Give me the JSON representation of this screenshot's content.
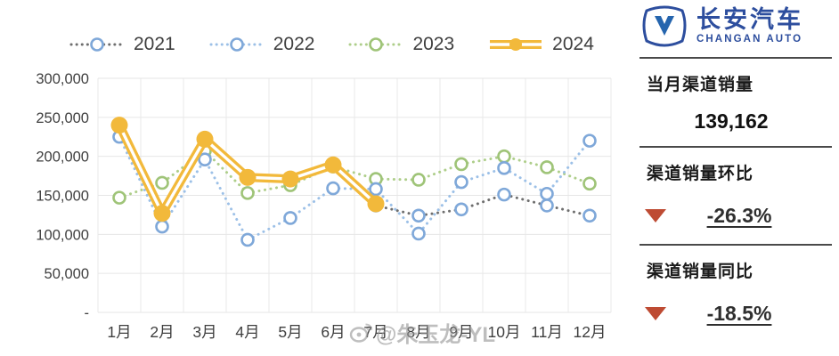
{
  "chart_data": {
    "type": "line",
    "title": "",
    "categories": [
      "1月",
      "2月",
      "3月",
      "4月",
      "5月",
      "6月",
      "7月",
      "8月",
      "9月",
      "10月",
      "11月",
      "12月"
    ],
    "series": [
      {
        "name": "2021",
        "line_color": "#6e6e6e",
        "marker": "ring",
        "marker_color": "#7FA8D9",
        "values": [
          241000,
          129000,
          220000,
          174000,
          172000,
          190000,
          137000,
          124000,
          132000,
          151000,
          137000,
          124000
        ]
      },
      {
        "name": "2022",
        "line_color": "#9CC0E7",
        "marker": "ring",
        "marker_color": "#7FA8D9",
        "values": [
          225000,
          110000,
          196000,
          93000,
          121000,
          159000,
          158000,
          101000,
          167000,
          185000,
          152000,
          220000
        ]
      },
      {
        "name": "2023",
        "line_color": "#AECE8A",
        "marker": "ring",
        "marker_color": "#9FC478",
        "values": [
          147000,
          166000,
          207000,
          153000,
          163000,
          187000,
          171000,
          170000,
          190000,
          200000,
          186000,
          165000
        ]
      },
      {
        "name": "2024",
        "line_color": "#F2B93B",
        "marker": "filled",
        "marker_color": "#F2B93B",
        "values": [
          240000,
          127000,
          222000,
          173000,
          171000,
          189000,
          139162
        ]
      }
    ],
    "xlabel": "",
    "ylabel": "",
    "ylim": [
      0,
      300000
    ],
    "y_ticks": [
      {
        "value": 300000,
        "label": "300,000"
      },
      {
        "value": 250000,
        "label": "250,000"
      },
      {
        "value": 200000,
        "label": "200,000"
      },
      {
        "value": 150000,
        "label": "150,000"
      },
      {
        "value": 100000,
        "label": "100,000"
      },
      {
        "value": 50000,
        "label": "50,000"
      },
      {
        "value": 0,
        "label": "-"
      }
    ],
    "grid": true,
    "legend_position": "top"
  },
  "sidebar": {
    "brand_cn": "长安汽车",
    "brand_en": "CHANGAN AUTO",
    "brand_color": "#2D4E9E",
    "stat_month_label": "当月渠道销量",
    "stat_month_value": "139,162",
    "stat_mom_label": "渠道销量环比",
    "stat_mom_value": "-26.3%",
    "stat_yoy_label": "渠道销量同比",
    "stat_yoy_value": "-18.5%",
    "down_triangle_color": "#BE4B33"
  },
  "watermark": {
    "text": "@朱玉龙-YL"
  }
}
